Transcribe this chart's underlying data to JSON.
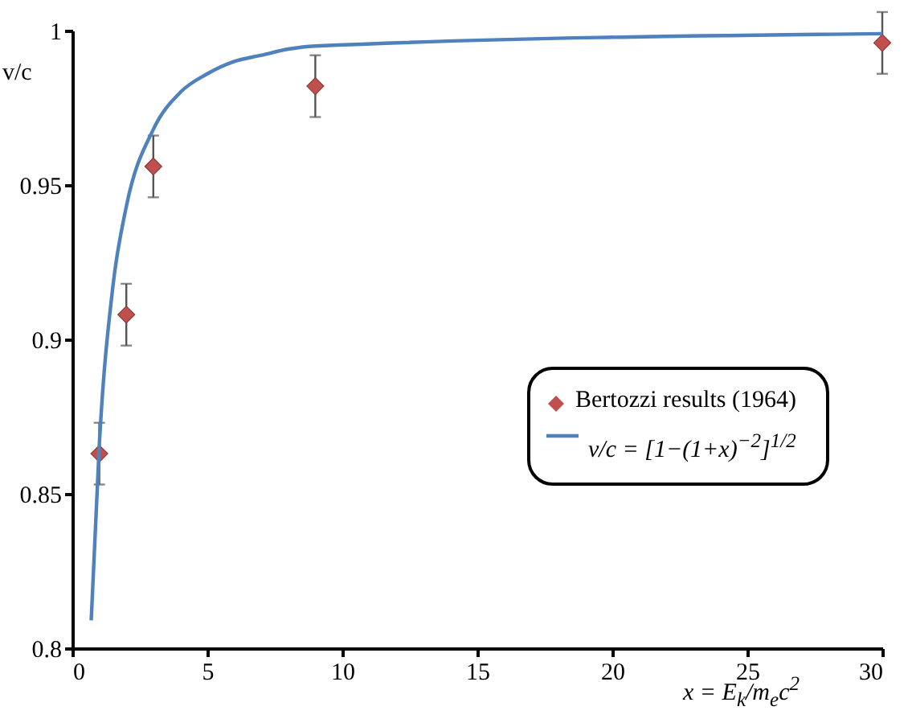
{
  "chart_data": {
    "type": "scatter",
    "xlabel": "x = E$_{k}$/m$_{e}$c$^{2}$",
    "ylabel": "v/c",
    "xlim": [
      0,
      30
    ],
    "xticks": [
      0,
      5,
      10,
      15,
      20,
      25,
      30
    ],
    "ylim": [
      0.8,
      1
    ],
    "yticks": [
      0.8,
      0.85,
      0.9,
      0.95,
      1
    ],
    "legend": "right",
    "series": [
      {
        "name": "Bertozzi results (1964)",
        "marker": "diamond",
        "color": "#c0504d",
        "x": [
          1,
          2,
          3,
          9,
          30
        ],
        "values": [
          0.863,
          0.908,
          0.956,
          0.982,
          0.996
        ],
        "errors": [
          0.01,
          0.01,
          0.01,
          0.01,
          0.01
        ]
      },
      {
        "name": "v/c = [1−(1+x)$^{−2}$]$^{1/2}$",
        "type": "line",
        "color": "#4f81bd",
        "x": [
          0.7,
          1,
          1.5,
          2,
          3,
          4,
          5,
          6,
          7,
          8,
          9,
          30
        ],
        "values": [
          0.809,
          0.866,
          0.917,
          0.943,
          0.968,
          0.98,
          0.986,
          0.99,
          0.992,
          0.994,
          0.995,
          0.999
        ]
      }
    ]
  }
}
